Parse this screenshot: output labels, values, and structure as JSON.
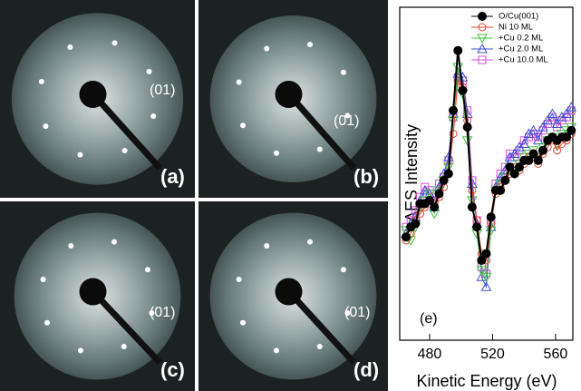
{
  "panels": [
    {
      "label": "(a)",
      "spot": "(01)"
    },
    {
      "label": "(b)",
      "spot": "(01)"
    },
    {
      "label": "(c)",
      "spot": "(01)"
    },
    {
      "label": "(d)",
      "spot": "(01)"
    }
  ],
  "chart_data": {
    "type": "line",
    "xlabel": "Kinetic Energy (eV)",
    "ylabel": "AES Intensity",
    "annotation": "(e)",
    "xlim": [
      461,
      571
    ],
    "xticks": [
      480,
      520,
      560
    ],
    "ylim": [
      0,
      1
    ],
    "grid": false,
    "legend": "upper right",
    "x": [
      465,
      468,
      471,
      474,
      477,
      480,
      483,
      486,
      489,
      492,
      495,
      498,
      501,
      504,
      507,
      510,
      513,
      516,
      519,
      522,
      525,
      528,
      531,
      534,
      537,
      540,
      543,
      546,
      549,
      552,
      555,
      558,
      561,
      564,
      567,
      570
    ],
    "series": [
      {
        "name": "O/Cu(001)",
        "color": "#000000",
        "marker": "filled-circle",
        "values": [
          0.31,
          0.34,
          0.35,
          0.41,
          0.41,
          0.42,
          0.4,
          0.44,
          0.48,
          0.5,
          0.69,
          0.87,
          0.75,
          0.64,
          0.4,
          0.34,
          0.24,
          0.26,
          0.37,
          0.45,
          0.45,
          0.48,
          0.52,
          0.5,
          0.52,
          0.54,
          0.54,
          0.56,
          0.54,
          0.57,
          0.6,
          0.61,
          0.6,
          0.61,
          0.61,
          0.63
        ]
      },
      {
        "name": "Ni 10 ML",
        "color": "#e8452c",
        "marker": "circle",
        "values": [
          0.3,
          0.32,
          0.36,
          0.38,
          0.4,
          0.42,
          0.41,
          0.43,
          0.46,
          0.5,
          0.62,
          0.78,
          0.76,
          0.66,
          0.45,
          0.36,
          0.26,
          0.24,
          0.35,
          0.44,
          0.46,
          0.48,
          0.5,
          0.52,
          0.51,
          0.53,
          0.55,
          0.55,
          0.53,
          0.56,
          0.58,
          0.6,
          0.57,
          0.59,
          0.6,
          0.62
        ]
      },
      {
        "name": "+Cu 0.2 ML",
        "color": "#3ec43a",
        "marker": "triangle-down",
        "values": [
          0.33,
          0.3,
          0.34,
          0.4,
          0.42,
          0.44,
          0.38,
          0.45,
          0.48,
          0.52,
          0.66,
          0.82,
          0.74,
          0.6,
          0.42,
          0.32,
          0.21,
          0.19,
          0.33,
          0.45,
          0.47,
          0.49,
          0.52,
          0.5,
          0.53,
          0.55,
          0.56,
          0.57,
          0.55,
          0.58,
          0.6,
          0.61,
          0.59,
          0.62,
          0.63,
          0.64
        ]
      },
      {
        "name": "+Cu 2.0 ML",
        "color": "#3b4fd8",
        "marker": "triangle-up",
        "values": [
          0.32,
          0.35,
          0.37,
          0.42,
          0.45,
          0.44,
          0.4,
          0.46,
          0.5,
          0.55,
          0.68,
          0.8,
          0.79,
          0.68,
          0.47,
          0.35,
          0.19,
          0.16,
          0.34,
          0.46,
          0.49,
          0.51,
          0.55,
          0.56,
          0.58,
          0.59,
          0.62,
          0.63,
          0.6,
          0.64,
          0.66,
          0.68,
          0.65,
          0.67,
          0.68,
          0.7
        ]
      },
      {
        "name": "+Cu 10.0 ML",
        "color": "#d94bd9",
        "marker": "square",
        "values": [
          0.34,
          0.36,
          0.39,
          0.43,
          0.46,
          0.45,
          0.42,
          0.47,
          0.49,
          0.54,
          0.67,
          0.79,
          0.78,
          0.69,
          0.48,
          0.36,
          0.22,
          0.2,
          0.36,
          0.47,
          0.5,
          0.52,
          0.56,
          0.55,
          0.57,
          0.6,
          0.61,
          0.62,
          0.61,
          0.63,
          0.65,
          0.67,
          0.64,
          0.66,
          0.67,
          0.69
        ]
      }
    ]
  }
}
